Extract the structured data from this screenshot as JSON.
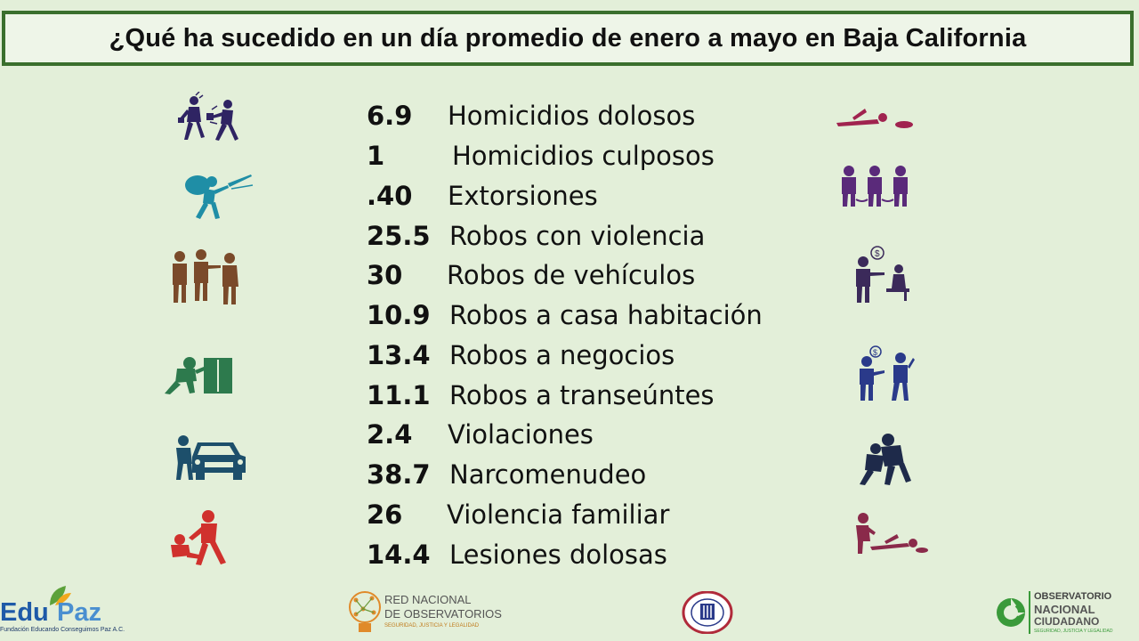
{
  "title": "¿Qué ha sucedido en un día promedio de enero a mayo en Baja California",
  "stats": [
    {
      "value": "6.9",
      "label": "Homicidios dolosos"
    },
    {
      "value": "1",
      "label": "Homicidios culposos"
    },
    {
      "value": ".40",
      "label": "Extorsiones"
    },
    {
      "value": "25.5",
      "label": "Robos con violencia"
    },
    {
      "value": "30",
      "label": "Robos de vehículos"
    },
    {
      "value": "10.9",
      "label": "Robos a casa habitación"
    },
    {
      "value": "13.4",
      "label": "Robos a negocios"
    },
    {
      "value": "11.1",
      "label": "Robos a transeúntes"
    },
    {
      "value": "2.4",
      "label": "Violaciones"
    },
    {
      "value": "38.7",
      "label": "Narcomenudeo"
    },
    {
      "value": "26",
      "label": "Violencia familiar"
    },
    {
      "value": "14.4",
      "label": "Lesiones dolosas"
    }
  ],
  "icons_left": [
    "purse-snatching-icon",
    "burglar-icon",
    "robbery-at-gunpoint-icon",
    "break-in-icon",
    "car-theft-icon",
    "assault-icon"
  ],
  "icons_right": [
    "homicide-body-icon",
    "handcuffed-detainees-icon",
    "extortion-call-icon",
    "extortion-threat-icon",
    "sexual-assault-icon",
    "injury-icon"
  ],
  "logos": {
    "edupaz": {
      "part1": "Edu",
      "part2": "Paz",
      "tagline": "Fundación Educando Conseguimos Paz A.C."
    },
    "red_nacional": {
      "line1": "RED NACIONAL",
      "line2": "DE OBSERVATORIOS",
      "line3": "SEGURIDAD, JUSTICIA Y LEGALIDAD"
    },
    "seal": {
      "label": "seal-logo"
    },
    "observatorio": {
      "line1": "OBSERVATORIO",
      "line2": "NACIONAL",
      "line3": "CIUDADANO",
      "line4": "SEGURIDAD, JUSTICIA Y LEGALIDAD"
    }
  },
  "colors": {
    "background": "#e3efd9",
    "border": "#3a6f2d"
  }
}
